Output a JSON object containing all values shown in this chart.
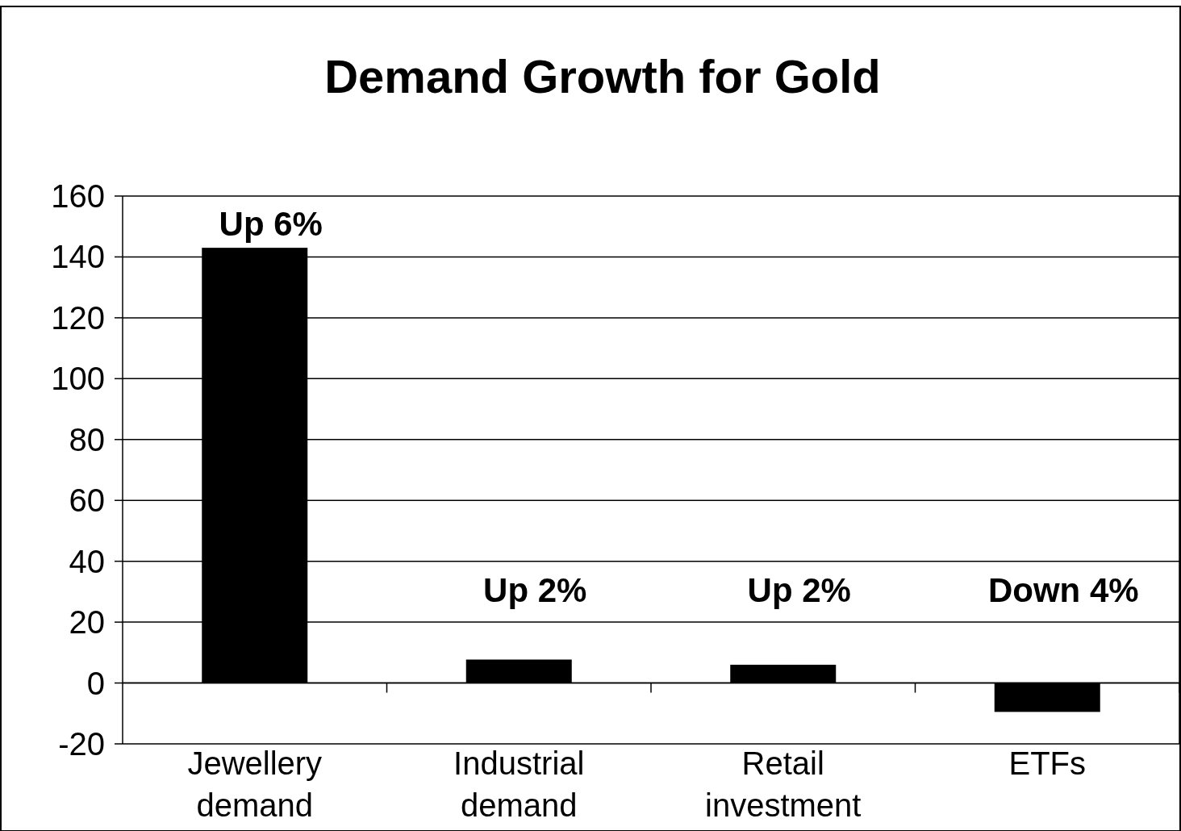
{
  "chart_data": {
    "type": "bar",
    "title": "Demand Growth for Gold",
    "categories": [
      "Jewellery demand",
      "Industrial demand",
      "Retail investment",
      "ETFs"
    ],
    "values": [
      143,
      7.7,
      6,
      -9.5
    ],
    "color": "#000000",
    "ylim": [
      -20,
      160
    ],
    "yticks": [
      -20,
      0,
      20,
      40,
      60,
      80,
      100,
      120,
      140,
      160
    ],
    "grid": "y",
    "annotations": [
      "Up 6%",
      "Up 2%",
      "Up 2%",
      "Down 4%"
    ]
  }
}
